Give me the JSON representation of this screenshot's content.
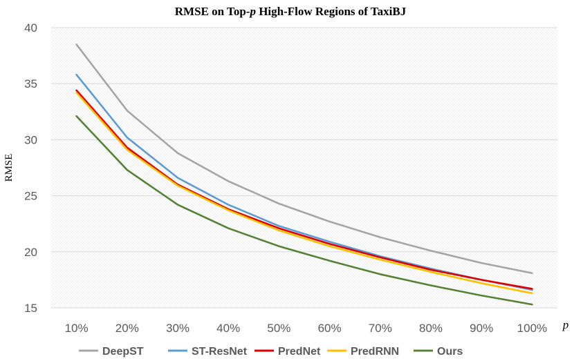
{
  "chart_data": {
    "type": "line",
    "title": "RMSE on Top-",
    "title_var": "p",
    "title_suffix": " High-Flow Regions of TaxiBJ",
    "xlabel": "p",
    "ylabel": "RMSE",
    "categories": [
      "10%",
      "20%",
      "30%",
      "40%",
      "50%",
      "60%",
      "70%",
      "80%",
      "90%",
      "100%"
    ],
    "ylim": [
      15,
      40
    ],
    "yticks": [
      15,
      20,
      25,
      30,
      35,
      40
    ],
    "grid": true,
    "legend_position": "bottom",
    "series": [
      {
        "name": "DeepST",
        "color": "#a5a5a5",
        "values": [
          38.5,
          32.6,
          28.8,
          26.3,
          24.3,
          22.7,
          21.3,
          20.1,
          19.0,
          18.1
        ]
      },
      {
        "name": "ST-ResNet",
        "color": "#5b9bd5",
        "values": [
          35.8,
          30.2,
          26.6,
          24.2,
          22.3,
          20.9,
          19.6,
          18.5,
          17.5,
          16.6
        ]
      },
      {
        "name": "PredNet",
        "color": "#e00000",
        "values": [
          34.4,
          29.3,
          26.0,
          23.8,
          22.1,
          20.7,
          19.5,
          18.4,
          17.5,
          16.7
        ]
      },
      {
        "name": "PredRNN",
        "color": "#ffc000",
        "values": [
          34.2,
          29.1,
          25.9,
          23.7,
          21.9,
          20.5,
          19.3,
          18.2,
          17.2,
          16.3
        ]
      },
      {
        "name": "Ours",
        "color": "#548235",
        "values": [
          32.1,
          27.3,
          24.2,
          22.1,
          20.5,
          19.2,
          18.0,
          17.0,
          16.1,
          15.3
        ]
      }
    ]
  }
}
